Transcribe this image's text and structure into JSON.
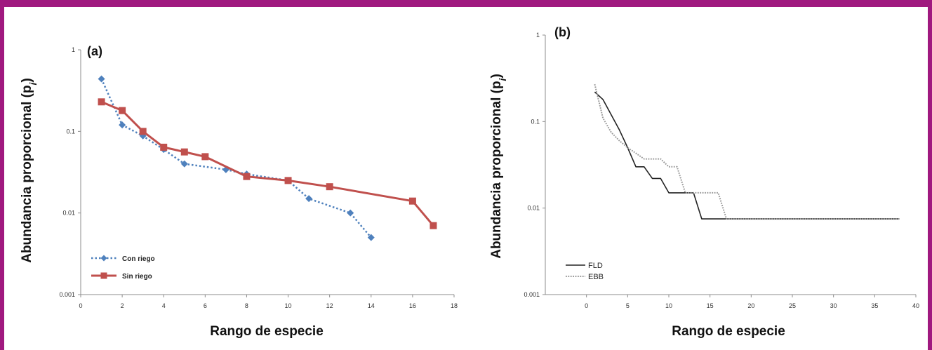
{
  "chart_data": [
    {
      "type": "line",
      "panel_label": "(a)",
      "xlabel": "Rango de especie",
      "ylabel": "Abundancia proporcional (p",
      "ylabel_sub": "i",
      "ylabel_close": ")",
      "y_scale": "log",
      "xlim": [
        0,
        18
      ],
      "ylim": [
        0.001,
        1
      ],
      "xticks": [
        0,
        2,
        4,
        6,
        8,
        10,
        12,
        14,
        16,
        18
      ],
      "yticks": [
        0.001,
        0.01,
        0.1,
        1
      ],
      "ytick_labels": [
        "0.001",
        "0.01",
        "0.1",
        "1"
      ],
      "legend_position": "bottom-left",
      "series": [
        {
          "name": "Con riego",
          "color": "#4f81bd",
          "line_style": "dotted",
          "marker": "diamond",
          "x": [
            1,
            2,
            3,
            4,
            5,
            7,
            8,
            10,
            11,
            13,
            14
          ],
          "y": [
            0.44,
            0.12,
            0.088,
            0.06,
            0.04,
            0.034,
            0.03,
            0.025,
            0.015,
            0.01,
            0.005
          ]
        },
        {
          "name": "Sin riego",
          "color": "#c0504d",
          "line_style": "solid",
          "marker": "square",
          "x": [
            1,
            2,
            3,
            4,
            5,
            6,
            8,
            10,
            12,
            16,
            17
          ],
          "y": [
            0.23,
            0.18,
            0.1,
            0.064,
            0.056,
            0.049,
            0.028,
            0.025,
            0.021,
            0.014,
            0.007
          ]
        }
      ]
    },
    {
      "type": "line",
      "panel_label": "(b)",
      "xlabel": "Rango de especie",
      "ylabel": "Abundancia proporcional (p",
      "ylabel_sub": "i",
      "ylabel_close": ")",
      "y_scale": "log",
      "xlim": [
        -5,
        40
      ],
      "ylim": [
        0.001,
        1
      ],
      "xticks": [
        0,
        5,
        10,
        15,
        20,
        25,
        30,
        35,
        40
      ],
      "yticks": [
        0.001,
        0.01,
        0.1,
        1
      ],
      "ytick_labels": [
        "0.001",
        "0.01",
        "0.1",
        "1"
      ],
      "legend_position": "bottom-left",
      "series": [
        {
          "name": "FLD",
          "color": "#222222",
          "line_style": "solid",
          "x": [
            1,
            2,
            3,
            4,
            5,
            6,
            7,
            8,
            9,
            10,
            11,
            12,
            13,
            14,
            15,
            16,
            17,
            18,
            19,
            20,
            21,
            22,
            23,
            24,
            25,
            26,
            27,
            28,
            29,
            30,
            31,
            32,
            33,
            34,
            35,
            36,
            37,
            38
          ],
          "y": [
            0.22,
            0.18,
            0.12,
            0.08,
            0.05,
            0.03,
            0.03,
            0.022,
            0.022,
            0.015,
            0.015,
            0.015,
            0.015,
            0.0075,
            0.0075,
            0.0075,
            0.0075,
            0.0075,
            0.0075,
            0.0075,
            0.0075,
            0.0075,
            0.0075,
            0.0075,
            0.0075,
            0.0075,
            0.0075,
            0.0075,
            0.0075,
            0.0075,
            0.0075,
            0.0075,
            0.0075,
            0.0075,
            0.0075,
            0.0075,
            0.0075,
            0.0075
          ]
        },
        {
          "name": "EBB",
          "color": "#9a9a9a",
          "line_style": "dotted",
          "x": [
            1,
            2,
            3,
            4,
            5,
            6,
            7,
            8,
            9,
            10,
            11,
            12,
            13,
            14,
            15,
            16,
            17,
            18,
            19,
            20,
            21,
            22,
            23,
            24,
            25,
            26,
            27,
            28,
            29,
            30,
            31,
            32,
            33,
            34,
            35,
            36,
            37,
            38
          ],
          "y": [
            0.27,
            0.11,
            0.075,
            0.06,
            0.05,
            0.043,
            0.037,
            0.037,
            0.037,
            0.03,
            0.03,
            0.015,
            0.015,
            0.015,
            0.015,
            0.015,
            0.0075,
            0.0075,
            0.0075,
            0.0075,
            0.0075,
            0.0075,
            0.0075,
            0.0075,
            0.0075,
            0.0075,
            0.0075,
            0.0075,
            0.0075,
            0.0075,
            0.0075,
            0.0075,
            0.0075,
            0.0075,
            0.0075,
            0.0075,
            0.0075,
            0.0075
          ]
        }
      ]
    }
  ]
}
